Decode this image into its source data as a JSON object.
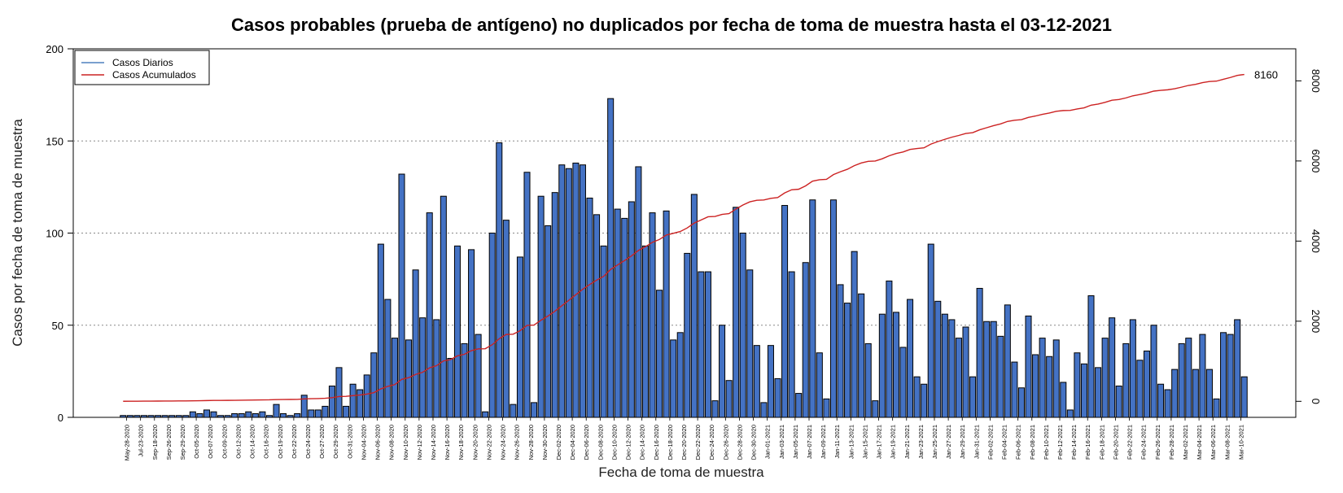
{
  "chart_data": {
    "type": "bar",
    "title": "Casos probables (prueba de antígeno) no duplicados por fecha de toma de muestra hasta el 03-12-2021",
    "xlabel": "Fecha de toma de muestra",
    "ylabel": "Casos por fecha de toma de muestra",
    "ylim": [
      0,
      200
    ],
    "y_ticks": [
      0,
      50,
      100,
      150,
      200
    ],
    "y2lim": [
      -400,
      8800
    ],
    "y2_ticks": [
      0,
      2000,
      4000,
      6000,
      8000
    ],
    "grid": "horizontal dotted at 50, 100, 150",
    "legend_position": "top-left",
    "legend": [
      {
        "name": "Casos Diarios",
        "color": "#4F81BD"
      },
      {
        "name": "Casos Acumulados",
        "color": "#CC2222"
      }
    ],
    "bar_fill": "#4472C4",
    "bar_stroke": "#000000",
    "cum_color": "#CC2222",
    "final_cumulative_label": "8160",
    "x_tick_labels": [
      "May-28-2020",
      "Jul-23-2020",
      "Sep-18-2020",
      "Sep-26-2020",
      "Sep-29-2020",
      "Oct-05-2020",
      "Oct-07-2020",
      "Oct-09-2020",
      "Oct-12-2020",
      "Oct-14-2020",
      "Oct-16-2020",
      "Oct-19-2020",
      "Oct-22-2020",
      "Oct-24-2020",
      "Oct-27-2020",
      "Oct-29-2020",
      "Oct-31-2020",
      "Nov-04-2020",
      "Nov-06-2020",
      "Nov-08-2020",
      "Nov-10-2020",
      "Nov-12-2020",
      "Nov-14-2020",
      "Nov-16-2020",
      "Nov-18-2020",
      "Nov-20-2020",
      "Nov-22-2020",
      "Nov-24-2020",
      "Nov-26-2020",
      "Nov-28-2020",
      "Nov-30-2020",
      "Dec-02-2020",
      "Dec-04-2020",
      "Dec-06-2020",
      "Dec-08-2020",
      "Dec-10-2020",
      "Dec-12-2020",
      "Dec-14-2020",
      "Dec-16-2020",
      "Dec-18-2020",
      "Dec-20-2020",
      "Dec-22-2020",
      "Dec-24-2020",
      "Dec-26-2020",
      "Dec-28-2020",
      "Dec-30-2020",
      "Jan-01-2021",
      "Jan-03-2021",
      "Jan-05-2021",
      "Jan-07-2021",
      "Jan-09-2021",
      "Jan-11-2021",
      "Jan-13-2021",
      "Jan-15-2021",
      "Jan-17-2021",
      "Jan-19-2021",
      "Jan-21-2021",
      "Jan-23-2021",
      "Jan-25-2021",
      "Jan-27-2021",
      "Jan-29-2021",
      "Jan-31-2021",
      "Feb-02-2021",
      "Feb-04-2021",
      "Feb-06-2021",
      "Feb-08-2021",
      "Feb-10-2021",
      "Feb-12-2021",
      "Feb-14-2021",
      "Feb-16-2021",
      "Feb-18-2021",
      "Feb-20-2021",
      "Feb-22-2021",
      "Feb-24-2021",
      "Feb-26-2021",
      "Feb-28-2021",
      "Mar-02-2021",
      "Mar-04-2021",
      "Mar-06-2021",
      "Mar-08-2021",
      "Mar-10-2021"
    ],
    "series": [
      {
        "name": "Casos Diarios",
        "values": [
          1,
          1,
          1,
          1,
          1,
          1,
          1,
          1,
          1,
          1,
          3,
          2,
          4,
          3,
          1,
          1,
          2,
          2,
          3,
          2,
          3,
          1,
          7,
          2,
          1,
          2,
          12,
          4,
          4,
          6,
          17,
          27,
          6,
          18,
          15,
          23,
          35,
          94,
          64,
          43,
          132,
          42,
          80,
          54,
          111,
          53,
          120,
          32,
          93,
          40,
          91,
          45,
          3,
          100,
          149,
          107,
          7,
          87,
          133,
          8,
          120,
          104,
          122,
          137,
          135,
          138,
          137,
          119,
          110,
          93,
          173,
          113,
          108,
          117,
          136,
          93,
          111,
          69,
          112,
          42,
          46,
          89,
          121,
          79,
          79,
          9,
          50,
          20,
          114,
          100,
          80,
          39,
          8,
          39,
          21,
          115,
          79,
          13,
          84,
          118,
          35,
          10,
          118,
          72,
          62,
          90,
          67,
          40,
          9,
          56,
          74,
          57,
          38,
          64,
          22,
          18,
          94,
          63,
          56,
          53,
          43,
          49,
          22,
          70,
          52,
          52,
          44,
          61,
          30,
          16,
          55,
          34,
          43,
          33,
          42,
          19,
          4,
          35,
          29,
          66,
          27,
          43,
          54,
          17,
          40,
          53,
          31,
          36,
          50,
          18,
          15,
          26,
          40,
          43,
          26,
          45,
          26,
          10,
          46,
          45,
          53,
          22
        ]
      },
      {
        "name": "Casos Acumulados",
        "values": [
          1,
          2,
          3,
          4,
          5,
          6,
          7,
          8,
          9,
          10,
          13,
          15,
          19,
          22,
          23,
          24,
          26,
          28,
          31,
          33,
          36,
          37,
          44,
          46,
          47,
          49,
          61,
          65,
          69,
          75,
          92,
          119,
          125,
          143,
          158,
          181,
          216,
          310,
          374,
          417,
          549,
          591,
          671,
          725,
          836,
          889,
          1009,
          1041,
          1134,
          1174,
          1265,
          1310,
          1313,
          1413,
          1562,
          1669,
          1676,
          1763,
          1896,
          1904,
          2024,
          2128,
          2250,
          2387,
          2522,
          2660,
          2797,
          2916,
          3026,
          3119,
          3292,
          3405,
          3513,
          3630,
          3766,
          3859,
          3970,
          4039,
          4151,
          4193,
          4239,
          4328,
          4449,
          4528,
          4607,
          4616,
          4666,
          4686,
          4800,
          4900,
          4980,
          5019,
          5027,
          5066,
          5087,
          5202,
          5281,
          5294,
          5378,
          5496,
          5531,
          5541,
          5659,
          5731,
          5793,
          5883,
          5950,
          5990,
          5999,
          6055,
          6129,
          6186,
          6224,
          6288,
          6310,
          6328,
          6422,
          6485,
          6541,
          6594,
          6637,
          6686,
          6708,
          6778,
          6830,
          6882,
          6926,
          6987,
          7017,
          7033,
          7088,
          7122,
          7165,
          7198,
          7240,
          7259,
          7263,
          7298,
          7327,
          7393,
          7420,
          7463,
          7517,
          7534,
          7574,
          7627,
          7658,
          7694,
          7744,
          7762,
          7777,
          7803,
          7843,
          7886,
          7912,
          7957,
          7983,
          7993,
          8039,
          8084,
          8137,
          8160
        ]
      }
    ]
  }
}
